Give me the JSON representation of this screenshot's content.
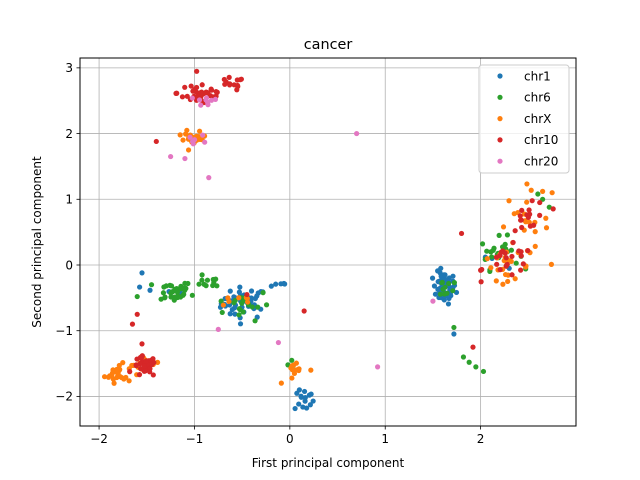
{
  "chart_data": {
    "type": "scatter",
    "title": "cancer",
    "xlabel": "First principal component",
    "ylabel": "Second principal component",
    "xlim": [
      -2.2,
      3.0
    ],
    "ylim": [
      -2.45,
      3.15
    ],
    "xticks": [
      -2,
      -1,
      0,
      1,
      2
    ],
    "yticks": [
      -2,
      -1,
      0,
      1,
      2,
      3
    ],
    "grid": true,
    "legend_position": "upper-right",
    "series": [
      {
        "name": "chr1",
        "color": "#1f77b4",
        "clusters": [
          {
            "cx": -0.48,
            "cy": -0.58,
            "sx": 0.12,
            "sy": 0.12,
            "n": 45
          },
          {
            "cx": 1.62,
            "cy": -0.35,
            "sx": 0.06,
            "sy": 0.12,
            "n": 55
          },
          {
            "cx": 0.15,
            "cy": -2.05,
            "sx": 0.05,
            "sy": 0.09,
            "n": 14
          },
          {
            "cx": -0.1,
            "cy": -0.28,
            "sx": 0.06,
            "sy": 0.03,
            "n": 5
          },
          {
            "cx": -1.3,
            "cy": -0.4,
            "sx": 0.12,
            "sy": 0.06,
            "n": 5
          }
        ],
        "points": [
          [
            -1.55,
            -0.12
          ],
          [
            1.72,
            -1.05
          ],
          [
            2.12,
            0.1
          ],
          [
            2.05,
            0.12
          ],
          [
            0.1,
            -1.9
          ],
          [
            2.3,
            -0.05
          ]
        ]
      },
      {
        "name": "chr6",
        "color": "#2ca02c",
        "clusters": [
          {
            "cx": -1.22,
            "cy": -0.4,
            "sx": 0.1,
            "sy": 0.08,
            "n": 30
          },
          {
            "cx": -0.8,
            "cy": -0.25,
            "sx": 0.07,
            "sy": 0.05,
            "n": 10
          },
          {
            "cx": -0.5,
            "cy": -0.6,
            "sx": 0.15,
            "sy": 0.12,
            "n": 20
          },
          {
            "cx": 2.2,
            "cy": 0.18,
            "sx": 0.1,
            "sy": 0.12,
            "n": 25
          },
          {
            "cx": 1.6,
            "cy": -0.35,
            "sx": 0.06,
            "sy": 0.1,
            "n": 10
          }
        ],
        "points": [
          [
            -1.45,
            -0.3
          ],
          [
            -1.6,
            -0.48
          ],
          [
            -1.35,
            -0.52
          ],
          [
            2.65,
            1.0
          ],
          [
            2.72,
            0.88
          ],
          [
            2.6,
            1.08
          ],
          [
            1.82,
            -1.4
          ],
          [
            1.88,
            -1.48
          ],
          [
            1.95,
            -1.55
          ],
          [
            2.03,
            -1.62
          ],
          [
            1.72,
            -0.95
          ],
          [
            0.02,
            -1.45
          ],
          [
            0.05,
            -1.6
          ],
          [
            -0.02,
            -1.52
          ],
          [
            -1.1,
            -0.28
          ],
          [
            -0.92,
            -0.15
          ],
          [
            -0.72,
            -0.55
          ]
        ]
      },
      {
        "name": "chrX",
        "color": "#ff7f0e",
        "clusters": [
          {
            "cx": -1.8,
            "cy": -1.65,
            "sx": 0.07,
            "sy": 0.07,
            "n": 25
          },
          {
            "cx": -1.52,
            "cy": -1.5,
            "sx": 0.08,
            "sy": 0.06,
            "n": 12
          },
          {
            "cx": -1.0,
            "cy": 1.92,
            "sx": 0.06,
            "sy": 0.05,
            "n": 22
          },
          {
            "cx": 2.28,
            "cy": -0.03,
            "sx": 0.12,
            "sy": 0.1,
            "n": 20
          },
          {
            "cx": 2.45,
            "cy": 0.65,
            "sx": 0.13,
            "sy": 0.25,
            "n": 22
          },
          {
            "cx": 0.05,
            "cy": -1.65,
            "sx": 0.07,
            "sy": 0.08,
            "n": 12
          },
          {
            "cx": -0.55,
            "cy": -0.55,
            "sx": 0.1,
            "sy": 0.05,
            "n": 6
          }
        ],
        "points": [
          [
            2.75,
            1.1
          ],
          [
            2.65,
            1.12
          ],
          [
            -1.15,
            1.98
          ],
          [
            -1.08,
            2.05
          ],
          [
            0.22,
            -1.6
          ],
          [
            -0.65,
            -0.5
          ]
        ]
      },
      {
        "name": "chr10",
        "color": "#d62728",
        "clusters": [
          {
            "cx": -0.92,
            "cy": 2.62,
            "sx": 0.13,
            "sy": 0.1,
            "n": 38
          },
          {
            "cx": -0.62,
            "cy": 2.75,
            "sx": 0.07,
            "sy": 0.05,
            "n": 12
          },
          {
            "cx": -1.52,
            "cy": -1.55,
            "sx": 0.06,
            "sy": 0.08,
            "n": 35
          },
          {
            "cx": 2.3,
            "cy": 0.05,
            "sx": 0.13,
            "sy": 0.12,
            "n": 22
          },
          {
            "cx": 2.52,
            "cy": 0.72,
            "sx": 0.1,
            "sy": 0.2,
            "n": 15
          }
        ],
        "points": [
          [
            -1.4,
            1.88
          ],
          [
            -1.65,
            -0.9
          ],
          [
            -1.6,
            -0.75
          ],
          [
            -1.55,
            -1.2
          ],
          [
            1.8,
            0.48
          ],
          [
            0.15,
            -0.7
          ],
          [
            1.92,
            -1.25
          ],
          [
            -0.45,
            -0.45
          ],
          [
            2.0,
            -0.08
          ],
          [
            2.62,
            0.95
          ],
          [
            -0.52,
            2.82
          ]
        ]
      },
      {
        "name": "chr20",
        "color": "#e377c2",
        "clusters": [
          {
            "cx": -0.88,
            "cy": 2.5,
            "sx": 0.05,
            "sy": 0.04,
            "n": 8
          },
          {
            "cx": -0.97,
            "cy": 1.9,
            "sx": 0.05,
            "sy": 0.04,
            "n": 6
          }
        ],
        "points": [
          [
            0.7,
            2.0
          ],
          [
            -1.25,
            1.65
          ],
          [
            -1.1,
            1.62
          ],
          [
            -0.85,
            1.33
          ],
          [
            0.92,
            -1.55
          ],
          [
            -0.75,
            -0.98
          ],
          [
            -0.12,
            -1.18
          ],
          [
            1.5,
            -0.55
          ],
          [
            -0.78,
            2.52
          ]
        ]
      }
    ]
  }
}
